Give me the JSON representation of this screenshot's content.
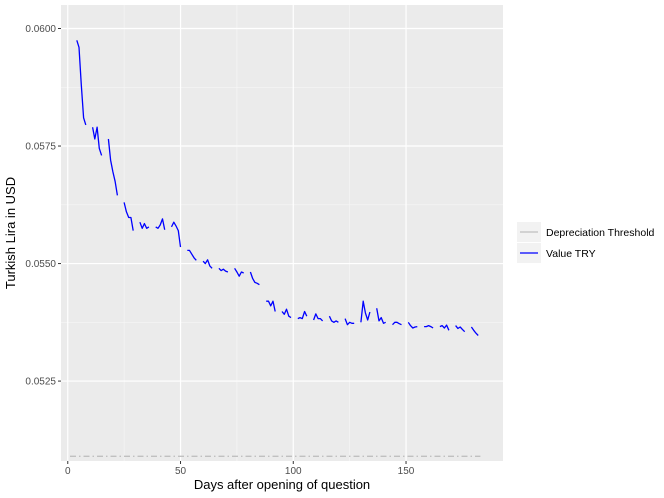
{
  "chart_data": {
    "type": "line",
    "title": "",
    "xlabel": "Days after opening of question",
    "ylabel": "Turkish Lira in USD",
    "xlim": [
      -3,
      193
    ],
    "ylim": [
      0.0508,
      0.0605
    ],
    "x_ticks": [
      0,
      50,
      100,
      150
    ],
    "y_ticks": [
      0.0525,
      0.055,
      0.0575,
      0.06
    ],
    "x_tick_labels": [
      "0",
      "50",
      "100",
      "150"
    ],
    "y_tick_labels": [
      "0.0525",
      "0.0550",
      "0.0575",
      "0.0600"
    ],
    "grid": true,
    "background": "#ebebeb",
    "legend": {
      "position": "right",
      "entries": [
        {
          "label": "Depreciation Threshold",
          "color": "#c0c0c0",
          "style": "dashdot"
        },
        {
          "label": "Value TRY",
          "color": "#0000ff",
          "style": "solid"
        }
      ]
    },
    "series": [
      {
        "name": "Depreciation Threshold",
        "color": "#c0c0c0",
        "style": "dashdot",
        "x": [
          1,
          183
        ],
        "y": [
          0.0509,
          0.0509
        ]
      },
      {
        "name": "Value TRY",
        "color": "#0000ff",
        "style": "solid",
        "segments": [
          {
            "x": [
              4,
              5,
              6,
              7,
              8
            ],
            "y": [
              0.05975,
              0.0596,
              0.0588,
              0.0581,
              0.05795
            ]
          },
          {
            "x": [
              11,
              12,
              13,
              14,
              15
            ],
            "y": [
              0.0579,
              0.05765,
              0.0579,
              0.05745,
              0.0573
            ]
          },
          {
            "x": [
              18,
              19,
              20,
              21,
              22
            ],
            "y": [
              0.05765,
              0.0572,
              0.05695,
              0.05675,
              0.05645
            ]
          },
          {
            "x": [
              25,
              26,
              27,
              28,
              29
            ],
            "y": [
              0.0563,
              0.0561,
              0.05598,
              0.05598,
              0.0557
            ]
          },
          {
            "x": [
              32,
              33,
              34,
              35,
              36
            ],
            "y": [
              0.05588,
              0.05575,
              0.05585,
              0.05575,
              0.05578
            ]
          },
          {
            "x": [
              39,
              40,
              41,
              42,
              43
            ],
            "y": [
              0.05578,
              0.05575,
              0.05582,
              0.05595,
              0.05572
            ]
          },
          {
            "x": [
              46,
              47,
              48,
              49,
              50
            ],
            "y": [
              0.05578,
              0.05588,
              0.0558,
              0.0557,
              0.05535
            ]
          },
          {
            "x": [
              53,
              54,
              55,
              56,
              57
            ],
            "y": [
              0.05528,
              0.05528,
              0.0552,
              0.05512,
              0.05507
            ]
          },
          {
            "x": [
              60,
              61,
              62,
              63,
              64
            ],
            "y": [
              0.05505,
              0.055,
              0.05508,
              0.05495,
              0.0549
            ]
          },
          {
            "x": [
              67,
              68,
              69,
              70,
              71
            ],
            "y": [
              0.0549,
              0.05485,
              0.05488,
              0.05484,
              0.05482
            ]
          },
          {
            "x": [
              74,
              75,
              76,
              77,
              78
            ],
            "y": [
              0.0549,
              0.05482,
              0.05473,
              0.05482,
              0.0548
            ]
          },
          {
            "x": [
              81,
              82,
              83,
              84,
              85
            ],
            "y": [
              0.05482,
              0.05468,
              0.0546,
              0.05458,
              0.05455
            ]
          },
          {
            "x": [
              88,
              89,
              90,
              91,
              92
            ],
            "y": [
              0.0542,
              0.0542,
              0.0541,
              0.0542,
              0.05398
            ]
          },
          {
            "x": [
              95,
              96,
              97,
              98,
              99
            ],
            "y": [
              0.05398,
              0.05392,
              0.05403,
              0.05388,
              0.05385
            ]
          },
          {
            "x": [
              102,
              103,
              104,
              105,
              106
            ],
            "y": [
              0.05383,
              0.05385,
              0.05383,
              0.05398,
              0.05388
            ]
          },
          {
            "x": [
              109,
              110,
              111,
              112,
              113
            ],
            "y": [
              0.0538,
              0.05393,
              0.05383,
              0.05383,
              0.05378
            ]
          },
          {
            "x": [
              116,
              117,
              118,
              119,
              120
            ],
            "y": [
              0.05388,
              0.05378,
              0.05375,
              0.05378,
              0.05375
            ]
          },
          {
            "x": [
              123,
              124,
              125,
              126,
              127
            ],
            "y": [
              0.05383,
              0.0537,
              0.05375,
              0.05373,
              0.05373
            ]
          },
          {
            "x": [
              130,
              131,
              132,
              133,
              134
            ],
            "y": [
              0.05375,
              0.0542,
              0.05395,
              0.0538,
              0.05397
            ]
          },
          {
            "x": [
              137,
              138,
              139,
              140,
              141
            ],
            "y": [
              0.05405,
              0.05378,
              0.05385,
              0.05373,
              0.05375
            ]
          },
          {
            "x": [
              144,
              145,
              146,
              147,
              148
            ],
            "y": [
              0.0537,
              0.05375,
              0.05375,
              0.05372,
              0.0537
            ]
          },
          {
            "x": [
              151,
              152,
              153,
              154,
              155
            ],
            "y": [
              0.05375,
              0.05368,
              0.05363,
              0.05365,
              0.05366
            ]
          },
          {
            "x": [
              158,
              159,
              160,
              161,
              162
            ],
            "y": [
              0.05366,
              0.05366,
              0.05368,
              0.05366,
              0.05363
            ]
          },
          {
            "x": [
              165,
              166,
              167,
              168,
              169
            ],
            "y": [
              0.05366,
              0.05368,
              0.05363,
              0.05369,
              0.05358
            ]
          },
          {
            "x": [
              172,
              173,
              174,
              175,
              176
            ],
            "y": [
              0.05368,
              0.05362,
              0.05365,
              0.0536,
              0.05355
            ]
          },
          {
            "x": [
              179,
              180,
              181,
              182
            ],
            "y": [
              0.05365,
              0.05358,
              0.05352,
              0.05347
            ]
          }
        ]
      }
    ]
  }
}
